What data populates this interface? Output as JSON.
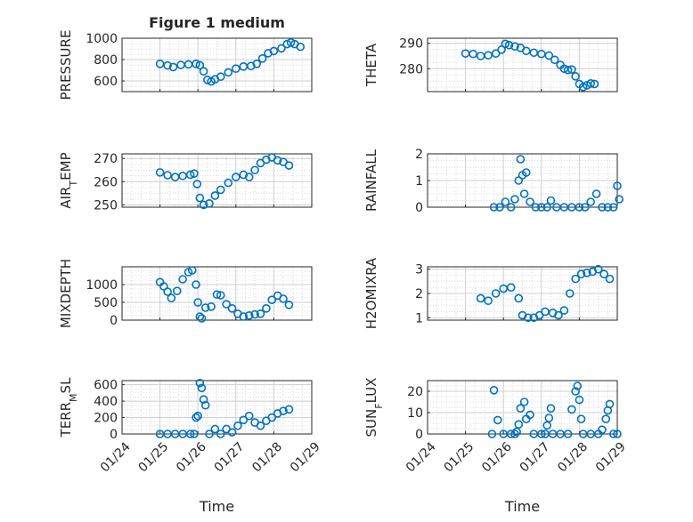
{
  "figure": {
    "title": "Figure 1 medium",
    "marker_color": "#0072bd"
  },
  "x_ticks": [
    "01/24",
    "01/25",
    "01/26",
    "01/27",
    "01/28",
    "01/29"
  ],
  "chart_data": [
    {
      "type": "scatter",
      "id": "pressure",
      "title": "Figure 1 medium",
      "ylabel": "PRESSURE",
      "ylabel_sub": "",
      "ylabel_tail": "",
      "xlabel": "",
      "xlim": [
        0,
        4.5
      ],
      "ylim": [
        500,
        1000
      ],
      "yticks": [
        600,
        800,
        1000
      ],
      "x_tick_labels_shown": false,
      "grid": true,
      "points": [
        [
          0,
          760
        ],
        [
          0.2,
          745
        ],
        [
          0.35,
          730
        ],
        [
          0.55,
          750
        ],
        [
          0.75,
          755
        ],
        [
          0.95,
          760
        ],
        [
          1.05,
          748
        ],
        [
          1.15,
          690
        ],
        [
          1.25,
          610
        ],
        [
          1.35,
          595
        ],
        [
          1.45,
          615
        ],
        [
          1.6,
          640
        ],
        [
          1.8,
          680
        ],
        [
          2.0,
          715
        ],
        [
          2.2,
          735
        ],
        [
          2.4,
          740
        ],
        [
          2.55,
          760
        ],
        [
          2.7,
          810
        ],
        [
          2.85,
          860
        ],
        [
          3.0,
          880
        ],
        [
          3.2,
          905
        ],
        [
          3.35,
          945
        ],
        [
          3.45,
          960
        ],
        [
          3.55,
          945
        ],
        [
          3.7,
          920
        ]
      ]
    },
    {
      "type": "scatter",
      "id": "theta",
      "title": "",
      "ylabel": "THETA",
      "ylabel_sub": "",
      "ylabel_tail": "",
      "xlabel": "",
      "xlim": [
        0,
        4.5
      ],
      "ylim": [
        271,
        292
      ],
      "yticks": [
        280,
        290
      ],
      "x_tick_labels_shown": false,
      "grid": true,
      "points": [
        [
          0,
          286
        ],
        [
          0.2,
          285.8
        ],
        [
          0.4,
          285
        ],
        [
          0.6,
          285.3
        ],
        [
          0.8,
          286
        ],
        [
          0.95,
          287.5
        ],
        [
          1.05,
          289.8
        ],
        [
          1.15,
          289.3
        ],
        [
          1.3,
          288.8
        ],
        [
          1.45,
          288.2
        ],
        [
          1.6,
          287
        ],
        [
          1.8,
          286.3
        ],
        [
          2.0,
          285.8
        ],
        [
          2.2,
          285.2
        ],
        [
          2.35,
          283.5
        ],
        [
          2.5,
          281.5
        ],
        [
          2.6,
          280
        ],
        [
          2.7,
          279.5
        ],
        [
          2.8,
          279.7
        ],
        [
          2.9,
          277
        ],
        [
          3.0,
          274
        ],
        [
          3.1,
          272.8
        ],
        [
          3.2,
          273.5
        ],
        [
          3.3,
          274.2
        ],
        [
          3.4,
          274
        ]
      ]
    },
    {
      "type": "scatter",
      "id": "airtemp",
      "title": "",
      "ylabel": "AIR",
      "ylabel_sub": "T",
      "ylabel_tail": "EMP",
      "xlabel": "",
      "xlim": [
        0,
        4.5
      ],
      "ylim": [
        249,
        272
      ],
      "yticks": [
        250,
        260,
        270
      ],
      "x_tick_labels_shown": false,
      "grid": true,
      "points": [
        [
          0,
          264
        ],
        [
          0.2,
          262.8
        ],
        [
          0.4,
          262
        ],
        [
          0.6,
          262.5
        ],
        [
          0.8,
          263
        ],
        [
          0.9,
          263.5
        ],
        [
          0.98,
          259
        ],
        [
          1.05,
          253
        ],
        [
          1.15,
          250
        ],
        [
          1.3,
          250.6
        ],
        [
          1.45,
          254
        ],
        [
          1.6,
          256.5
        ],
        [
          1.8,
          259.5
        ],
        [
          2.0,
          262
        ],
        [
          2.2,
          263
        ],
        [
          2.35,
          262
        ],
        [
          2.5,
          265
        ],
        [
          2.65,
          268
        ],
        [
          2.8,
          269.5
        ],
        [
          2.95,
          270.5
        ],
        [
          3.1,
          269.2
        ],
        [
          3.25,
          268.5
        ],
        [
          3.4,
          267
        ]
      ]
    },
    {
      "type": "scatter",
      "id": "rainfall",
      "title": "",
      "ylabel": "RAINFALL",
      "ylabel_sub": "",
      "ylabel_tail": "",
      "xlabel": "",
      "xlim": [
        0,
        4.5
      ],
      "ylim": [
        0,
        2
      ],
      "yticks": [
        0,
        1,
        2
      ],
      "x_tick_labels_shown": false,
      "grid": true,
      "points": [
        [
          0.75,
          0
        ],
        [
          0.9,
          0
        ],
        [
          1.05,
          0.2
        ],
        [
          1.2,
          0
        ],
        [
          1.3,
          0.3
        ],
        [
          1.4,
          1.0
        ],
        [
          1.45,
          1.8
        ],
        [
          1.5,
          1.2
        ],
        [
          1.55,
          0.5
        ],
        [
          1.6,
          1.3
        ],
        [
          1.7,
          0.2
        ],
        [
          1.85,
          0
        ],
        [
          2.0,
          0
        ],
        [
          2.15,
          0
        ],
        [
          2.25,
          0.25
        ],
        [
          2.4,
          0
        ],
        [
          2.6,
          0
        ],
        [
          2.8,
          0
        ],
        [
          3.0,
          0
        ],
        [
          3.15,
          0
        ],
        [
          3.3,
          0.2
        ],
        [
          3.45,
          0.5
        ],
        [
          3.6,
          0
        ],
        [
          3.75,
          0
        ],
        [
          3.9,
          0
        ],
        [
          4.0,
          0.8
        ],
        [
          4.05,
          0.3
        ]
      ]
    },
    {
      "type": "scatter",
      "id": "mixdepth",
      "title": "",
      "ylabel": "MIXDEPTH",
      "ylabel_sub": "",
      "ylabel_tail": "",
      "xlabel": "",
      "xlim": [
        0,
        4.5
      ],
      "ylim": [
        0,
        1500
      ],
      "yticks": [
        0,
        500,
        1000
      ],
      "x_tick_labels_shown": false,
      "grid": true,
      "points": [
        [
          0,
          1070
        ],
        [
          0.1,
          950
        ],
        [
          0.2,
          800
        ],
        [
          0.3,
          620
        ],
        [
          0.45,
          820
        ],
        [
          0.6,
          1150
        ],
        [
          0.75,
          1350
        ],
        [
          0.85,
          1400
        ],
        [
          0.95,
          1000
        ],
        [
          1.0,
          500
        ],
        [
          1.05,
          100
        ],
        [
          1.1,
          50
        ],
        [
          1.2,
          350
        ],
        [
          1.35,
          380
        ],
        [
          1.5,
          720
        ],
        [
          1.6,
          700
        ],
        [
          1.75,
          450
        ],
        [
          1.9,
          330
        ],
        [
          2.05,
          180
        ],
        [
          2.2,
          100
        ],
        [
          2.35,
          130
        ],
        [
          2.5,
          160
        ],
        [
          2.65,
          180
        ],
        [
          2.8,
          330
        ],
        [
          2.95,
          570
        ],
        [
          3.1,
          690
        ],
        [
          3.25,
          600
        ],
        [
          3.4,
          430
        ]
      ]
    },
    {
      "type": "scatter",
      "id": "h2omixra",
      "title": "",
      "ylabel": "H2OMIXRA",
      "ylabel_sub": "",
      "ylabel_tail": "",
      "xlabel": "",
      "xlim": [
        0,
        4.5
      ],
      "ylim": [
        0.9,
        3.1
      ],
      "yticks": [
        1,
        2,
        3
      ],
      "x_tick_labels_shown": false,
      "grid": true,
      "points": [
        [
          0.4,
          1.8
        ],
        [
          0.6,
          1.7
        ],
        [
          0.8,
          2.0
        ],
        [
          1.0,
          2.2
        ],
        [
          1.2,
          2.25
        ],
        [
          1.4,
          1.8
        ],
        [
          1.5,
          1.1
        ],
        [
          1.65,
          1.0
        ],
        [
          1.8,
          1.0
        ],
        [
          1.95,
          1.1
        ],
        [
          2.1,
          1.25
        ],
        [
          2.3,
          1.2
        ],
        [
          2.45,
          1.1
        ],
        [
          2.6,
          1.3
        ],
        [
          2.75,
          2.0
        ],
        [
          2.9,
          2.6
        ],
        [
          3.05,
          2.8
        ],
        [
          3.2,
          2.85
        ],
        [
          3.35,
          2.9
        ],
        [
          3.5,
          3.0
        ],
        [
          3.65,
          2.8
        ],
        [
          3.8,
          2.6
        ]
      ]
    },
    {
      "type": "scatter",
      "id": "terrmsl",
      "title": "",
      "ylabel": "TERR",
      "ylabel_sub": "M",
      "ylabel_tail": "SL",
      "xlabel": "Time",
      "xlim": [
        0,
        4.5
      ],
      "ylim": [
        0,
        650
      ],
      "yticks": [
        0,
        200,
        400,
        600
      ],
      "x_tick_labels_shown": true,
      "grid": true,
      "points": [
        [
          0,
          0
        ],
        [
          0.2,
          0
        ],
        [
          0.4,
          0
        ],
        [
          0.6,
          0
        ],
        [
          0.8,
          0
        ],
        [
          0.9,
          0
        ],
        [
          0.95,
          200
        ],
        [
          1.0,
          220
        ],
        [
          1.05,
          620
        ],
        [
          1.1,
          560
        ],
        [
          1.15,
          420
        ],
        [
          1.2,
          350
        ],
        [
          1.3,
          0
        ],
        [
          1.45,
          60
        ],
        [
          1.6,
          0
        ],
        [
          1.75,
          60
        ],
        [
          1.9,
          20
        ],
        [
          2.05,
          100
        ],
        [
          2.2,
          170
        ],
        [
          2.35,
          220
        ],
        [
          2.5,
          140
        ],
        [
          2.65,
          100
        ],
        [
          2.8,
          160
        ],
        [
          2.95,
          200
        ],
        [
          3.1,
          250
        ],
        [
          3.25,
          280
        ],
        [
          3.4,
          300
        ]
      ]
    },
    {
      "type": "scatter",
      "id": "sunflux",
      "title": "",
      "ylabel": "SUN",
      "ylabel_sub": "F",
      "ylabel_tail": "LUX",
      "xlabel": "Time",
      "xlim": [
        0,
        4.5
      ],
      "ylim": [
        0,
        25
      ],
      "yticks": [
        0,
        10,
        20
      ],
      "x_tick_labels_shown": true,
      "grid": true,
      "points": [
        [
          0.7,
          0
        ],
        [
          0.75,
          20.5
        ],
        [
          0.85,
          6.5
        ],
        [
          1.0,
          0
        ],
        [
          1.2,
          0
        ],
        [
          1.3,
          0
        ],
        [
          1.35,
          1
        ],
        [
          1.4,
          4.5
        ],
        [
          1.45,
          12
        ],
        [
          1.55,
          15
        ],
        [
          1.6,
          7
        ],
        [
          1.7,
          9
        ],
        [
          1.8,
          0
        ],
        [
          2.0,
          0
        ],
        [
          2.1,
          0
        ],
        [
          2.15,
          4
        ],
        [
          2.2,
          7.5
        ],
        [
          2.25,
          12
        ],
        [
          2.3,
          0
        ],
        [
          2.5,
          0
        ],
        [
          2.7,
          0
        ],
        [
          2.8,
          11.5
        ],
        [
          2.9,
          20
        ],
        [
          2.95,
          22.5
        ],
        [
          3.0,
          16
        ],
        [
          3.05,
          7
        ],
        [
          3.1,
          0
        ],
        [
          3.3,
          0
        ],
        [
          3.5,
          0
        ],
        [
          3.6,
          2
        ],
        [
          3.7,
          7
        ],
        [
          3.75,
          11
        ],
        [
          3.8,
          14
        ],
        [
          3.9,
          0
        ],
        [
          4.0,
          0
        ]
      ]
    }
  ]
}
